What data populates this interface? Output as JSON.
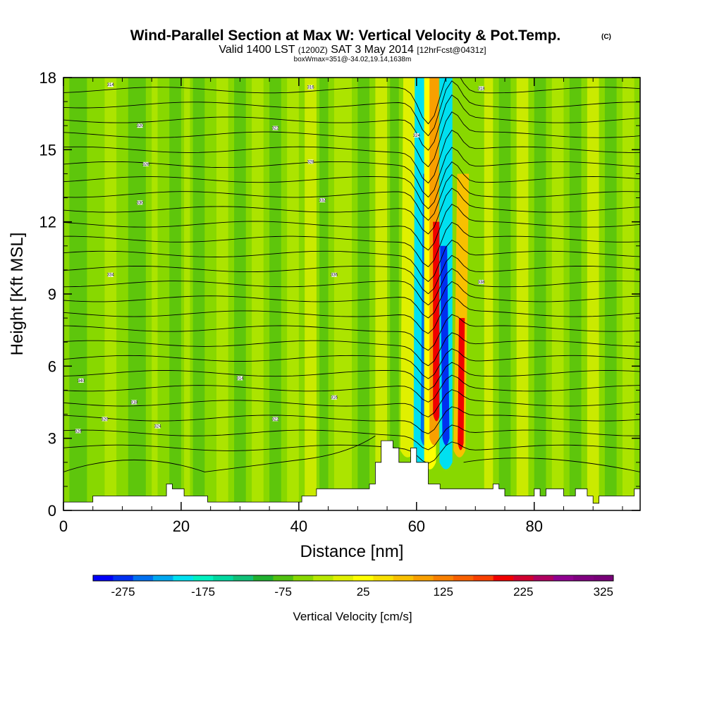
{
  "header": {
    "title": "Wind-Parallel Section at Max W: Vertical Velocity & Pot.Temp.",
    "copyright": "(C)",
    "valid_prefix": "Valid 1400 LST",
    "valid_utc": "(1200Z)",
    "valid_date": "SAT 3 May 2014",
    "forecast": "[12hrFcst@0431z]",
    "boxinfo": "boxWmax=351@-34.02,19.14,1638m"
  },
  "chart_data": {
    "type": "heatmap",
    "xlabel": "Distance [nm]",
    "ylabel": "Height [Kft MSL]",
    "xlim": [
      0,
      98
    ],
    "ylim": [
      0,
      18
    ],
    "x_ticks": [
      "0",
      "20",
      "40",
      "60",
      "80"
    ],
    "x_tick_values": [
      0,
      20,
      40,
      60,
      80
    ],
    "y_ticks": [
      "0",
      "3",
      "6",
      "9",
      "12",
      "15",
      "18"
    ],
    "y_tick_values": [
      0,
      3,
      6,
      9,
      12,
      15,
      18
    ],
    "colorbar": {
      "label": "Vertical Velocity [cm/s]",
      "tick_labels": [
        "-275",
        "-175",
        "-75",
        "25",
        "125",
        "225",
        "325"
      ],
      "tick_values": [
        -275,
        -175,
        -75,
        25,
        125,
        225,
        325
      ],
      "range": [
        -300,
        350
      ],
      "step": 25,
      "colors": [
        "#0000f8",
        "#0030f0",
        "#0070f0",
        "#00a8f0",
        "#00e0f0",
        "#00f0c0",
        "#00d8a0",
        "#10c078",
        "#20b030",
        "#50c010",
        "#88d800",
        "#b8e800",
        "#e0f000",
        "#ffff00",
        "#f8e000",
        "#f8c000",
        "#f8a000",
        "#f88000",
        "#f86000",
        "#f84000",
        "#f00000",
        "#d00030",
        "#b00060",
        "#900090",
        "#800080",
        "#780078"
      ]
    },
    "terrain_kft": [
      [
        0,
        0.35
      ],
      [
        5,
        0.35
      ],
      [
        5,
        0.6
      ],
      [
        17.5,
        0.6
      ],
      [
        17.5,
        1.1
      ],
      [
        18.5,
        1.1
      ],
      [
        18.5,
        0.9
      ],
      [
        20.5,
        0.9
      ],
      [
        20.5,
        0.6
      ],
      [
        24.5,
        0.6
      ],
      [
        24.5,
        0.35
      ],
      [
        40.5,
        0.35
      ],
      [
        40.5,
        0.6
      ],
      [
        43,
        0.6
      ],
      [
        43,
        0.9
      ],
      [
        46,
        0.9
      ],
      [
        46,
        0.9
      ],
      [
        52,
        0.9
      ],
      [
        52,
        1.1
      ],
      [
        53,
        1.1
      ],
      [
        53,
        2.0
      ],
      [
        54,
        2.0
      ],
      [
        54,
        2.9
      ],
      [
        56,
        2.9
      ],
      [
        56,
        2.6
      ],
      [
        57,
        2.6
      ],
      [
        57,
        2.0
      ],
      [
        59,
        2.0
      ],
      [
        59,
        2.6
      ],
      [
        60,
        2.6
      ],
      [
        60,
        2.0
      ],
      [
        62,
        2.0
      ],
      [
        62,
        1.1
      ],
      [
        64,
        1.1
      ],
      [
        64,
        0.9
      ],
      [
        73,
        0.9
      ],
      [
        73,
        1.1
      ],
      [
        74,
        1.1
      ],
      [
        74,
        0.9
      ],
      [
        75,
        0.9
      ],
      [
        75,
        0.6
      ],
      [
        80,
        0.6
      ],
      [
        80,
        0.9
      ],
      [
        81,
        0.9
      ],
      [
        81,
        0.6
      ],
      [
        82,
        0.6
      ],
      [
        82,
        0.9
      ],
      [
        85,
        0.9
      ],
      [
        85,
        0.6
      ],
      [
        87,
        0.6
      ],
      [
        87,
        0.9
      ],
      [
        89,
        0.9
      ],
      [
        89,
        0.6
      ],
      [
        90,
        0.6
      ],
      [
        90,
        0.3
      ],
      [
        91,
        0.3
      ],
      [
        91,
        0.6
      ],
      [
        97,
        0.6
      ],
      [
        97,
        0.9
      ],
      [
        98,
        0.9
      ]
    ],
    "contour_labels": [
      "314",
      "316",
      "318",
      "320",
      "322",
      "324",
      "326",
      "328",
      "330",
      "332",
      "334",
      "336",
      "338",
      "340"
    ]
  }
}
